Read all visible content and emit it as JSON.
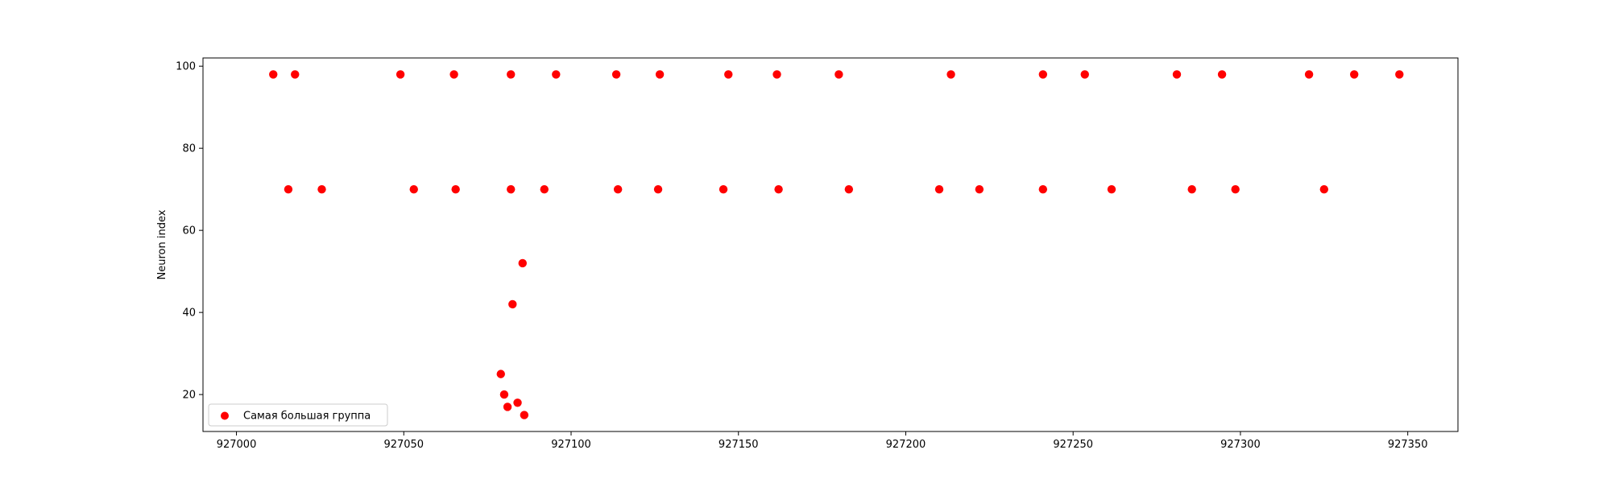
{
  "chart_data": {
    "type": "scatter",
    "title": "",
    "xlabel": "",
    "ylabel": "Neuron index",
    "xlim": [
      926990,
      927365
    ],
    "ylim": [
      11,
      102
    ],
    "xticks": [
      927000,
      927050,
      927100,
      927150,
      927200,
      927250,
      927300,
      927350
    ],
    "yticks": [
      20,
      40,
      60,
      80,
      100
    ],
    "grid": false,
    "legend_position": "lower-left",
    "series": [
      {
        "name": "Самая большая группа",
        "color": "#ff0000",
        "points": [
          [
            927011,
            98
          ],
          [
            927017.5,
            98
          ],
          [
            927049,
            98
          ],
          [
            927065,
            98
          ],
          [
            927082,
            98
          ],
          [
            927095.5,
            98
          ],
          [
            927113.5,
            98
          ],
          [
            927126.5,
            98
          ],
          [
            927147,
            98
          ],
          [
            927161.5,
            98
          ],
          [
            927180,
            98
          ],
          [
            927213.5,
            98
          ],
          [
            927241,
            98
          ],
          [
            927253.5,
            98
          ],
          [
            927281,
            98
          ],
          [
            927294.5,
            98
          ],
          [
            927320.5,
            98
          ],
          [
            927334,
            98
          ],
          [
            927347.5,
            98
          ],
          [
            927015.5,
            70
          ],
          [
            927025.5,
            70
          ],
          [
            927053,
            70
          ],
          [
            927065.5,
            70
          ],
          [
            927082,
            70
          ],
          [
            927092,
            70
          ],
          [
            927114,
            70
          ],
          [
            927126,
            70
          ],
          [
            927145.5,
            70
          ],
          [
            927162,
            70
          ],
          [
            927183,
            70
          ],
          [
            927210,
            70
          ],
          [
            927222,
            70
          ],
          [
            927241,
            70
          ],
          [
            927261.5,
            70
          ],
          [
            927285.5,
            70
          ],
          [
            927298.5,
            70
          ],
          [
            927325,
            70
          ],
          [
            927085.5,
            52
          ],
          [
            927082.5,
            42
          ],
          [
            927079,
            25
          ],
          [
            927080,
            20
          ],
          [
            927084,
            18
          ],
          [
            927081,
            17
          ],
          [
            927086,
            15
          ]
        ]
      }
    ]
  }
}
